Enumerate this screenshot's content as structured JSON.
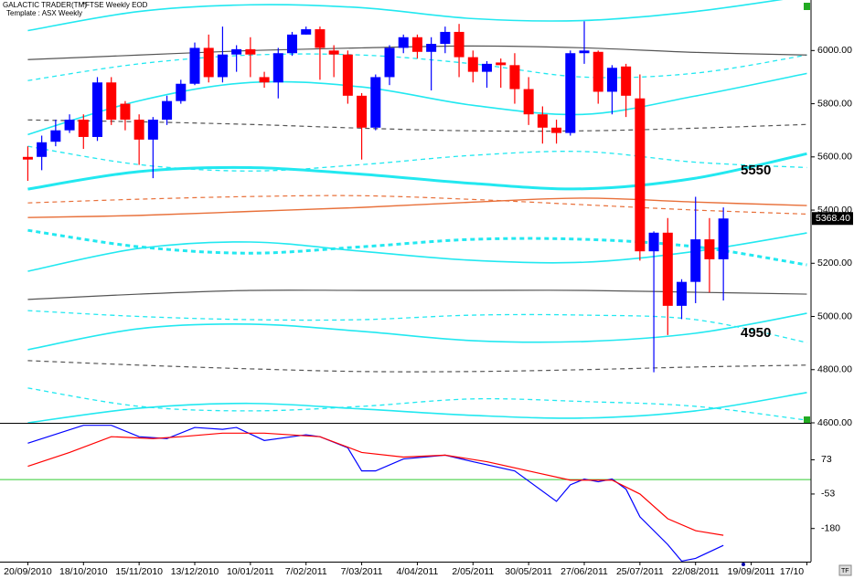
{
  "chart_data": [
    {
      "type": "candlestick",
      "header": "GALACTIC TRADER(TM)",
      "symbol": "*FTSE Weekly EOD",
      "template": "Template : ASX Weekly",
      "up_color": "#0000ff",
      "down_color": "#ff0000",
      "open": [
        5600,
        5600,
        5657,
        5700,
        5740,
        5675,
        5880,
        5800,
        5740,
        5665,
        5740,
        5810,
        5875,
        6010,
        5900,
        5985,
        6005,
        5900,
        5880,
        5990,
        6060,
        6080,
        6000,
        5985,
        5830,
        5710,
        5900,
        6010,
        6050,
        5995,
        6025,
        6070,
        5975,
        5920,
        5955,
        5945,
        5855,
        5760,
        5710,
        5690,
        5990,
        5995,
        5845,
        5940,
        5820,
        5245,
        5315,
        5040,
        5130,
        5290,
        5215
      ],
      "high": [
        5640,
        5680,
        5740,
        5760,
        5760,
        5900,
        5900,
        5810,
        5760,
        5750,
        5830,
        5890,
        6030,
        6060,
        6090,
        6020,
        6050,
        5920,
        6010,
        6070,
        6090,
        6090,
        6020,
        6000,
        5840,
        5910,
        6020,
        6060,
        6060,
        6050,
        6090,
        6100,
        6000,
        5960,
        5970,
        5990,
        5900,
        5790,
        5740,
        6000,
        6110,
        6000,
        5945,
        5950,
        5910,
        5320,
        5370,
        5140,
        5450,
        5370,
        5410
      ],
      "low": [
        5510,
        5550,
        5640,
        5690,
        5630,
        5660,
        5720,
        5700,
        5570,
        5520,
        5720,
        5800,
        5870,
        5880,
        5880,
        5920,
        5900,
        5860,
        5820,
        5980,
        6060,
        5890,
        5900,
        5800,
        5590,
        5700,
        5870,
        5990,
        5970,
        5850,
        5990,
        5900,
        5880,
        5860,
        5860,
        5800,
        5720,
        5650,
        5650,
        5680,
        5950,
        5800,
        5760,
        5750,
        5210,
        4790,
        4930,
        4990,
        5050,
        5090,
        5060
      ],
      "close": [
        5590,
        5655,
        5700,
        5740,
        5675,
        5880,
        5740,
        5740,
        5665,
        5740,
        5810,
        5875,
        6010,
        5900,
        5985,
        6005,
        5985,
        5880,
        5990,
        6060,
        6080,
        6010,
        5985,
        5830,
        5710,
        5900,
        6010,
        6050,
        5995,
        6025,
        6070,
        5975,
        5920,
        5950,
        5945,
        5855,
        5760,
        5710,
        5690,
        5990,
        6000,
        5845,
        5935,
        5830,
        5245,
        5315,
        5040,
        5130,
        5290,
        5215,
        5368.4
      ],
      "xlim": [
        -2,
        56.3
      ],
      "xticks": [
        {
          "value": 0,
          "label": "20/09/2010"
        },
        {
          "value": 4,
          "label": "18/10/2010"
        },
        {
          "value": 8,
          "label": "15/11/2010"
        },
        {
          "value": 12,
          "label": "13/12/2010"
        },
        {
          "value": 16,
          "label": "10/01/2011"
        },
        {
          "value": 20,
          "label": "7/02/2011"
        },
        {
          "value": 24,
          "label": "7/03/2011"
        },
        {
          "value": 28,
          "label": "4/04/2011"
        },
        {
          "value": 32,
          "label": "2/05/2011"
        },
        {
          "value": 36,
          "label": "30/05/2011"
        },
        {
          "value": 40,
          "label": "27/06/2011"
        },
        {
          "value": 44,
          "label": "25/07/2011"
        },
        {
          "value": 48,
          "label": "22/08/2011"
        },
        {
          "value": 52,
          "label": "19/09/2011"
        },
        {
          "value": 56,
          "label": "17/10"
        }
      ],
      "ylim": [
        4600,
        6190
      ],
      "yticks": [
        {
          "value": 4600,
          "label": "4600.00"
        },
        {
          "value": 4800,
          "label": "4800.00"
        },
        {
          "value": 5000,
          "label": "5000.00"
        },
        {
          "value": 5200,
          "label": "5200.00"
        },
        {
          "value": 5400,
          "label": "5400.00"
        },
        {
          "value": 5600,
          "label": "5600.00"
        },
        {
          "value": 5800,
          "label": "5800.00"
        },
        {
          "value": 6000,
          "label": "6000.00"
        }
      ],
      "last_price": {
        "value": 5368.4,
        "label": "5368.40"
      },
      "annotations": [
        "5550",
        "4950"
      ],
      "overlay_x": [
        0,
        8,
        16,
        24,
        32,
        40,
        48,
        56
      ],
      "overlays": [
        {
          "color": "#22e8f0",
          "dashed": false,
          "width": 1.6,
          "values": [
            6075,
            6147,
            6172,
            6161,
            6120,
            6113,
            6147,
            6206
          ]
        },
        {
          "color": "#22e8f0",
          "dashed": true,
          "width": 1.3,
          "values": [
            5887,
            5950,
            5983,
            5983,
            5950,
            5900,
            5915,
            5983
          ]
        },
        {
          "color": "#22e8f0",
          "dashed": false,
          "width": 1.6,
          "values": [
            5684,
            5811,
            5880,
            5863,
            5794,
            5760,
            5829,
            5914
          ]
        },
        {
          "color": "#555555",
          "dashed": false,
          "width": 1.2,
          "values": [
            5966,
            5983,
            6000,
            6010,
            6017,
            6010,
            5993,
            5983
          ]
        },
        {
          "color": "#555555",
          "dashed": true,
          "width": 1.2,
          "values": [
            5739,
            5732,
            5722,
            5708,
            5698,
            5698,
            5708,
            5722
          ]
        },
        {
          "color": "#22e8f0",
          "dashed": true,
          "width": 1.3,
          "values": [
            5640,
            5571,
            5547,
            5571,
            5606,
            5620,
            5580,
            5560
          ]
        },
        {
          "color": "#22e8f0",
          "dashed": false,
          "width": 3,
          "values": [
            5479,
            5545,
            5560,
            5535,
            5500,
            5480,
            5520,
            5612
          ]
        },
        {
          "color": "#e8703a",
          "dashed": true,
          "width": 1.2,
          "values": [
            5427,
            5441,
            5451,
            5454,
            5440,
            5420,
            5400,
            5385
          ]
        },
        {
          "color": "#e8703a",
          "dashed": false,
          "width": 1.4,
          "values": [
            5372,
            5380,
            5395,
            5410,
            5430,
            5445,
            5430,
            5417
          ]
        },
        {
          "color": "#22e8f0",
          "dashed": true,
          "width": 3,
          "values": [
            5324,
            5262,
            5238,
            5262,
            5290,
            5290,
            5262,
            5194
          ]
        },
        {
          "color": "#22e8f0",
          "dashed": false,
          "width": 1.6,
          "values": [
            5170,
            5256,
            5280,
            5245,
            5211,
            5204,
            5245,
            5314
          ]
        },
        {
          "color": "#555555",
          "dashed": false,
          "width": 1.2,
          "values": [
            5064,
            5084,
            5098,
            5098,
            5098,
            5098,
            5091,
            5084
          ]
        },
        {
          "color": "#22e8f0",
          "dashed": true,
          "width": 1.3,
          "values": [
            5022,
            5000,
            4988,
            4988,
            5005,
            5005,
            4988,
            4902
          ]
        },
        {
          "color": "#22e8f0",
          "dashed": false,
          "width": 1.6,
          "values": [
            4875,
            4954,
            4971,
            4944,
            4909,
            4906,
            4937,
            5012
          ]
        },
        {
          "color": "#555555",
          "dashed": true,
          "width": 1.2,
          "values": [
            4834,
            4817,
            4803,
            4793,
            4793,
            4800,
            4810,
            4817
          ]
        },
        {
          "color": "#22e8f0",
          "dashed": true,
          "width": 1.3,
          "values": [
            4731,
            4662,
            4645,
            4662,
            4690,
            4680,
            4662,
            4610
          ]
        },
        {
          "color": "#22e8f0",
          "dashed": false,
          "width": 1.6,
          "values": [
            4600,
            4655,
            4673,
            4652,
            4628,
            4618,
            4645,
            4714
          ]
        }
      ]
    },
    {
      "type": "line",
      "ylim": [
        -302,
        209
      ],
      "yticks": [
        73,
        -53,
        -180
      ],
      "hline": 0,
      "hline_color": "#33cc33",
      "series": [
        {
          "color": "#0000ff",
          "x": [
            0,
            4,
            6,
            8,
            10,
            12,
            14,
            15,
            17,
            20,
            21,
            23,
            24,
            25,
            27,
            30,
            32,
            35,
            38,
            39,
            40,
            41,
            42,
            43,
            44,
            46,
            47,
            48,
            50
          ],
          "values": [
            134,
            200,
            200,
            158,
            151,
            192,
            185,
            192,
            144,
            165,
            158,
            117,
            32,
            32,
            76,
            90,
            66,
            32,
            -80,
            -19,
            2,
            -8,
            2,
            -35,
            -137,
            -239,
            -300,
            -290,
            -242
          ]
        },
        {
          "color": "#ff0000",
          "x": [
            0,
            3,
            6,
            9,
            11,
            14,
            17,
            21,
            24,
            27,
            30,
            33,
            36,
            39,
            42,
            44,
            46,
            48,
            50
          ],
          "values": [
            49,
            100,
            158,
            151,
            158,
            171,
            171,
            158,
            100,
            83,
            90,
            66,
            32,
            -2,
            -2,
            -53,
            -144,
            -188,
            -205
          ]
        }
      ]
    }
  ]
}
